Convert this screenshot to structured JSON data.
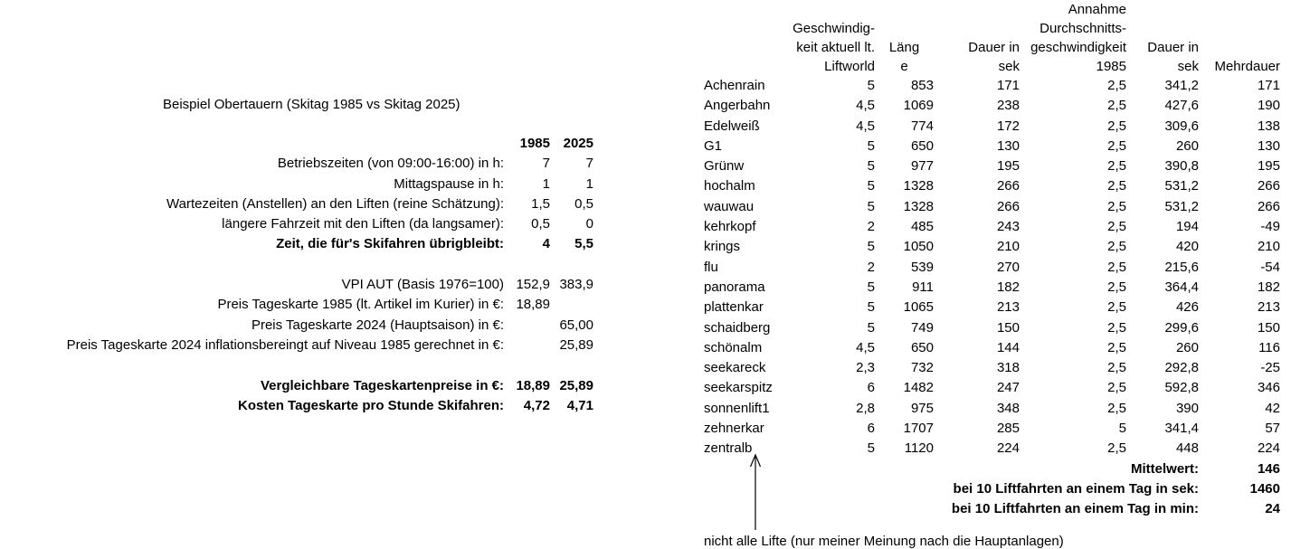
{
  "colors": {
    "background": "#ffffff",
    "text": "#000000"
  },
  "left_panel": {
    "title": "Beispiel Obertauern (Skitag 1985 vs Skitag 2025)",
    "col_headers": [
      "1985",
      "2025"
    ],
    "rows": [
      {
        "label": "Betriebszeiten (von 09:00-16:00) in h:",
        "v1985": "7",
        "v2025": "7",
        "bold": false
      },
      {
        "label": "Mittagspause in h:",
        "v1985": "1",
        "v2025": "1",
        "bold": false
      },
      {
        "label": "Wartezeiten (Anstellen) an den Liften (reine Schätzung):",
        "v1985": "1,5",
        "v2025": "0,5",
        "bold": false
      },
      {
        "label": "längere Fahrzeit mit den Liften (da langsamer):",
        "v1985": "0,5",
        "v2025": "0",
        "bold": false
      },
      {
        "label": "Zeit, die für's Skifahren übrigbleibt:",
        "v1985": "4",
        "v2025": "5,5",
        "bold": true
      },
      {
        "label": "",
        "v1985": "",
        "v2025": "",
        "bold": false
      },
      {
        "label": "VPI AUT (Basis 1976=100)",
        "v1985": "152,9",
        "v2025": "383,9",
        "bold": false
      },
      {
        "label": "Preis Tageskarte 1985 (lt. Artikel im Kurier) in €:",
        "v1985": "18,89",
        "v2025": "",
        "bold": false
      },
      {
        "label": "Preis Tageskarte 2024 (Hauptsaison) in €:",
        "v1985": "",
        "v2025": "65,00",
        "bold": false
      },
      {
        "label": "Preis Tageskarte 2024 inflationsbereingt auf Niveau 1985 gerechnet in €:",
        "v1985": "",
        "v2025": "25,89",
        "bold": false
      },
      {
        "label": "",
        "v1985": "",
        "v2025": "",
        "bold": false
      },
      {
        "label": "Vergleichbare Tageskartenpreise in €:",
        "v1985": "18,89",
        "v2025": "25,89",
        "bold": true
      },
      {
        "label": "Kosten Tageskarte pro Stunde Skifahren:",
        "v1985": "4,72",
        "v2025": "4,71",
        "bold": true
      }
    ]
  },
  "lift_table": {
    "header": {
      "speed": [
        "",
        "Geschwindig-",
        "keit aktuell lt.",
        "Liftworld"
      ],
      "length": [
        "",
        "",
        "Läng",
        "e"
      ],
      "dauer1": [
        "",
        "",
        "Dauer in",
        "sek"
      ],
      "annahme": [
        "Annahme",
        "Durchschnitts-",
        "geschwindigkeit",
        "1985"
      ],
      "dauer2": [
        "",
        "",
        "Dauer in",
        "sek"
      ],
      "mehrdauer": [
        "",
        "",
        "",
        "Mehrdauer"
      ]
    },
    "rows": [
      [
        "Achenrain",
        "5",
        "853",
        "171",
        "2,5",
        "341,2",
        "171"
      ],
      [
        "Angerbahn",
        "4,5",
        "1069",
        "238",
        "2,5",
        "427,6",
        "190"
      ],
      [
        "Edelweiß",
        "4,5",
        "774",
        "172",
        "2,5",
        "309,6",
        "138"
      ],
      [
        "G1",
        "5",
        "650",
        "130",
        "2,5",
        "260",
        "130"
      ],
      [
        "Grünw",
        "5",
        "977",
        "195",
        "2,5",
        "390,8",
        "195"
      ],
      [
        "hochalm",
        "5",
        "1328",
        "266",
        "2,5",
        "531,2",
        "266"
      ],
      [
        "wauwau",
        "5",
        "1328",
        "266",
        "2,5",
        "531,2",
        "266"
      ],
      [
        "kehrkopf",
        "2",
        "485",
        "243",
        "2,5",
        "194",
        "-49"
      ],
      [
        "krings",
        "5",
        "1050",
        "210",
        "2,5",
        "420",
        "210"
      ],
      [
        "flu",
        "2",
        "539",
        "270",
        "2,5",
        "215,6",
        "-54"
      ],
      [
        "panorama",
        "5",
        "911",
        "182",
        "2,5",
        "364,4",
        "182"
      ],
      [
        "plattenkar",
        "5",
        "1065",
        "213",
        "2,5",
        "426",
        "213"
      ],
      [
        "schaidberg",
        "5",
        "749",
        "150",
        "2,5",
        "299,6",
        "150"
      ],
      [
        "schönalm",
        "4,5",
        "650",
        "144",
        "2,5",
        "260",
        "116"
      ],
      [
        "seekareck",
        "2,3",
        "732",
        "318",
        "2,5",
        "292,8",
        "-25"
      ],
      [
        "seekarspitz",
        "6",
        "1482",
        "247",
        "2,5",
        "592,8",
        "346"
      ],
      [
        "sonnenlift1",
        "2,8",
        "975",
        "348",
        "2,5",
        "390",
        "42"
      ],
      [
        "zehnerkar",
        "6",
        "1707",
        "285",
        "5",
        "341,4",
        "57"
      ],
      [
        "zentralb",
        "5",
        "1120",
        "224",
        "2,5",
        "448",
        "224"
      ]
    ],
    "footer": [
      {
        "label": "Mittelwert:",
        "value": "146"
      },
      {
        "label": "bei 10 Liftfahrten an einem Tag in sek:",
        "value": "1460"
      },
      {
        "label": "bei 10 Liftfahrten an einem Tag in min:",
        "value": "24"
      }
    ],
    "annotation": "nicht alle Lifte (nur meiner Meinung nach die Hauptanlagen)"
  }
}
